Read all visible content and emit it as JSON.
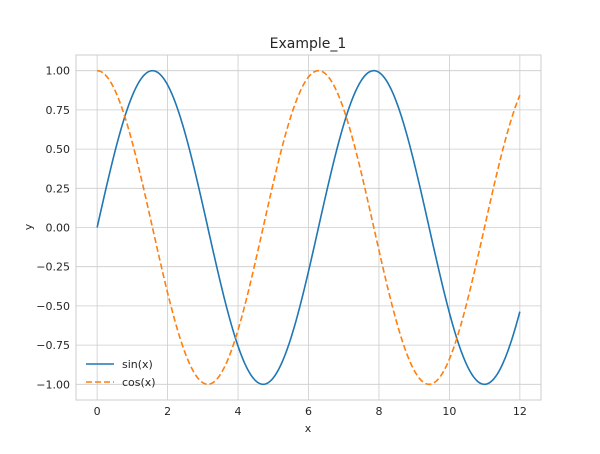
{
  "chart_data": {
    "type": "line",
    "title": "Example_1",
    "xlabel": "x",
    "ylabel": "y",
    "xlim": [
      -0.6,
      12.6
    ],
    "ylim": [
      -1.1,
      1.1
    ],
    "x_ticks": [
      0,
      2,
      4,
      6,
      8,
      10,
      12
    ],
    "x_tick_labels": [
      "0",
      "2",
      "4",
      "6",
      "8",
      "10",
      "12"
    ],
    "y_ticks": [
      1.0,
      0.75,
      0.5,
      0.25,
      0.0,
      -0.25,
      -0.5,
      -0.75,
      -1.0
    ],
    "y_tick_labels": [
      "1.00",
      "0.75",
      "0.50",
      "0.25",
      "0.00",
      "−0.25",
      "−0.50",
      "−0.75",
      "−1.00"
    ],
    "grid": true,
    "legend_position": "lower-left",
    "series": [
      {
        "name": "sin(x)",
        "color": "#1f77b4",
        "style": "solid",
        "x": [
          0,
          0.5,
          1,
          1.5,
          2,
          2.5,
          3,
          3.5,
          4,
          4.5,
          5,
          5.5,
          6,
          6.5,
          7,
          7.5,
          8,
          8.5,
          9,
          9.5,
          10,
          10.5,
          11,
          11.5,
          12
        ],
        "y": [
          0.0,
          0.479,
          0.841,
          0.997,
          0.909,
          0.598,
          0.141,
          -0.351,
          -0.757,
          -0.978,
          -0.959,
          -0.706,
          -0.279,
          0.215,
          0.657,
          0.938,
          0.989,
          0.798,
          0.412,
          -0.075,
          -0.544,
          -0.88,
          -1.0,
          -0.875,
          -0.537
        ]
      },
      {
        "name": "cos(x)",
        "color": "#ff7f0e",
        "style": "dashed",
        "x": [
          0,
          0.5,
          1,
          1.5,
          2,
          2.5,
          3,
          3.5,
          4,
          4.5,
          5,
          5.5,
          6,
          6.5,
          7,
          7.5,
          8,
          8.5,
          9,
          9.5,
          10,
          10.5,
          11,
          11.5,
          12
        ],
        "y": [
          1.0,
          0.878,
          0.54,
          0.071,
          -0.416,
          -0.801,
          -0.99,
          -0.936,
          -0.654,
          -0.211,
          0.284,
          0.709,
          0.96,
          0.977,
          0.754,
          0.347,
          -0.146,
          -0.602,
          -0.911,
          -0.997,
          -0.839,
          -0.476,
          0.004,
          0.484,
          0.844
        ]
      }
    ]
  }
}
